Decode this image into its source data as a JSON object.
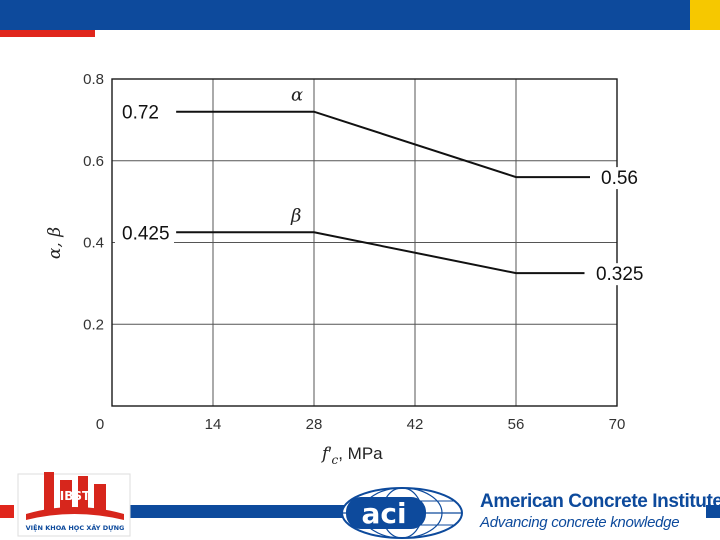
{
  "chart_data": {
    "type": "line",
    "xlabel_main": "f",
    "xlabel_prime": "′",
    "xlabel_sub": "c",
    "xlabel_unit": ", MPa",
    "ylabel": "α, β",
    "xlim": [
      0,
      70
    ],
    "ylim": [
      0,
      0.8
    ],
    "x_ticks": [
      "0",
      "14",
      "28",
      "42",
      "56",
      "70"
    ],
    "y_ticks": [
      "0.2",
      "0.4",
      "0.6",
      "0.8"
    ],
    "grid": true,
    "series": [
      {
        "name": "α",
        "x": [
          10,
          28,
          56,
          70
        ],
        "y": [
          0.72,
          0.72,
          0.56,
          0.56
        ],
        "labels": [
          {
            "text": "0.72",
            "side": "left"
          },
          {
            "text": "0.56",
            "side": "right"
          }
        ]
      },
      {
        "name": "β",
        "x": [
          10,
          28,
          56,
          70
        ],
        "y": [
          0.425,
          0.425,
          0.325,
          0.325
        ],
        "labels": [
          {
            "text": "0.425",
            "side": "left"
          },
          {
            "text": "0.325",
            "side": "right"
          }
        ]
      }
    ]
  },
  "footer": {
    "brand_name": "American Concrete Institute",
    "brand_reg": "®",
    "brand_tagline": "Advancing concrete knowledge",
    "aci_logo_text": "aci",
    "left_logo_text": "VIỆN KHOA HỌC XÂY DỰNG",
    "left_logo_letters": "IBST"
  },
  "colors": {
    "primary_blue": "#0d4a9c",
    "accent_red": "#e0261c",
    "accent_yellow": "#f6c800"
  }
}
